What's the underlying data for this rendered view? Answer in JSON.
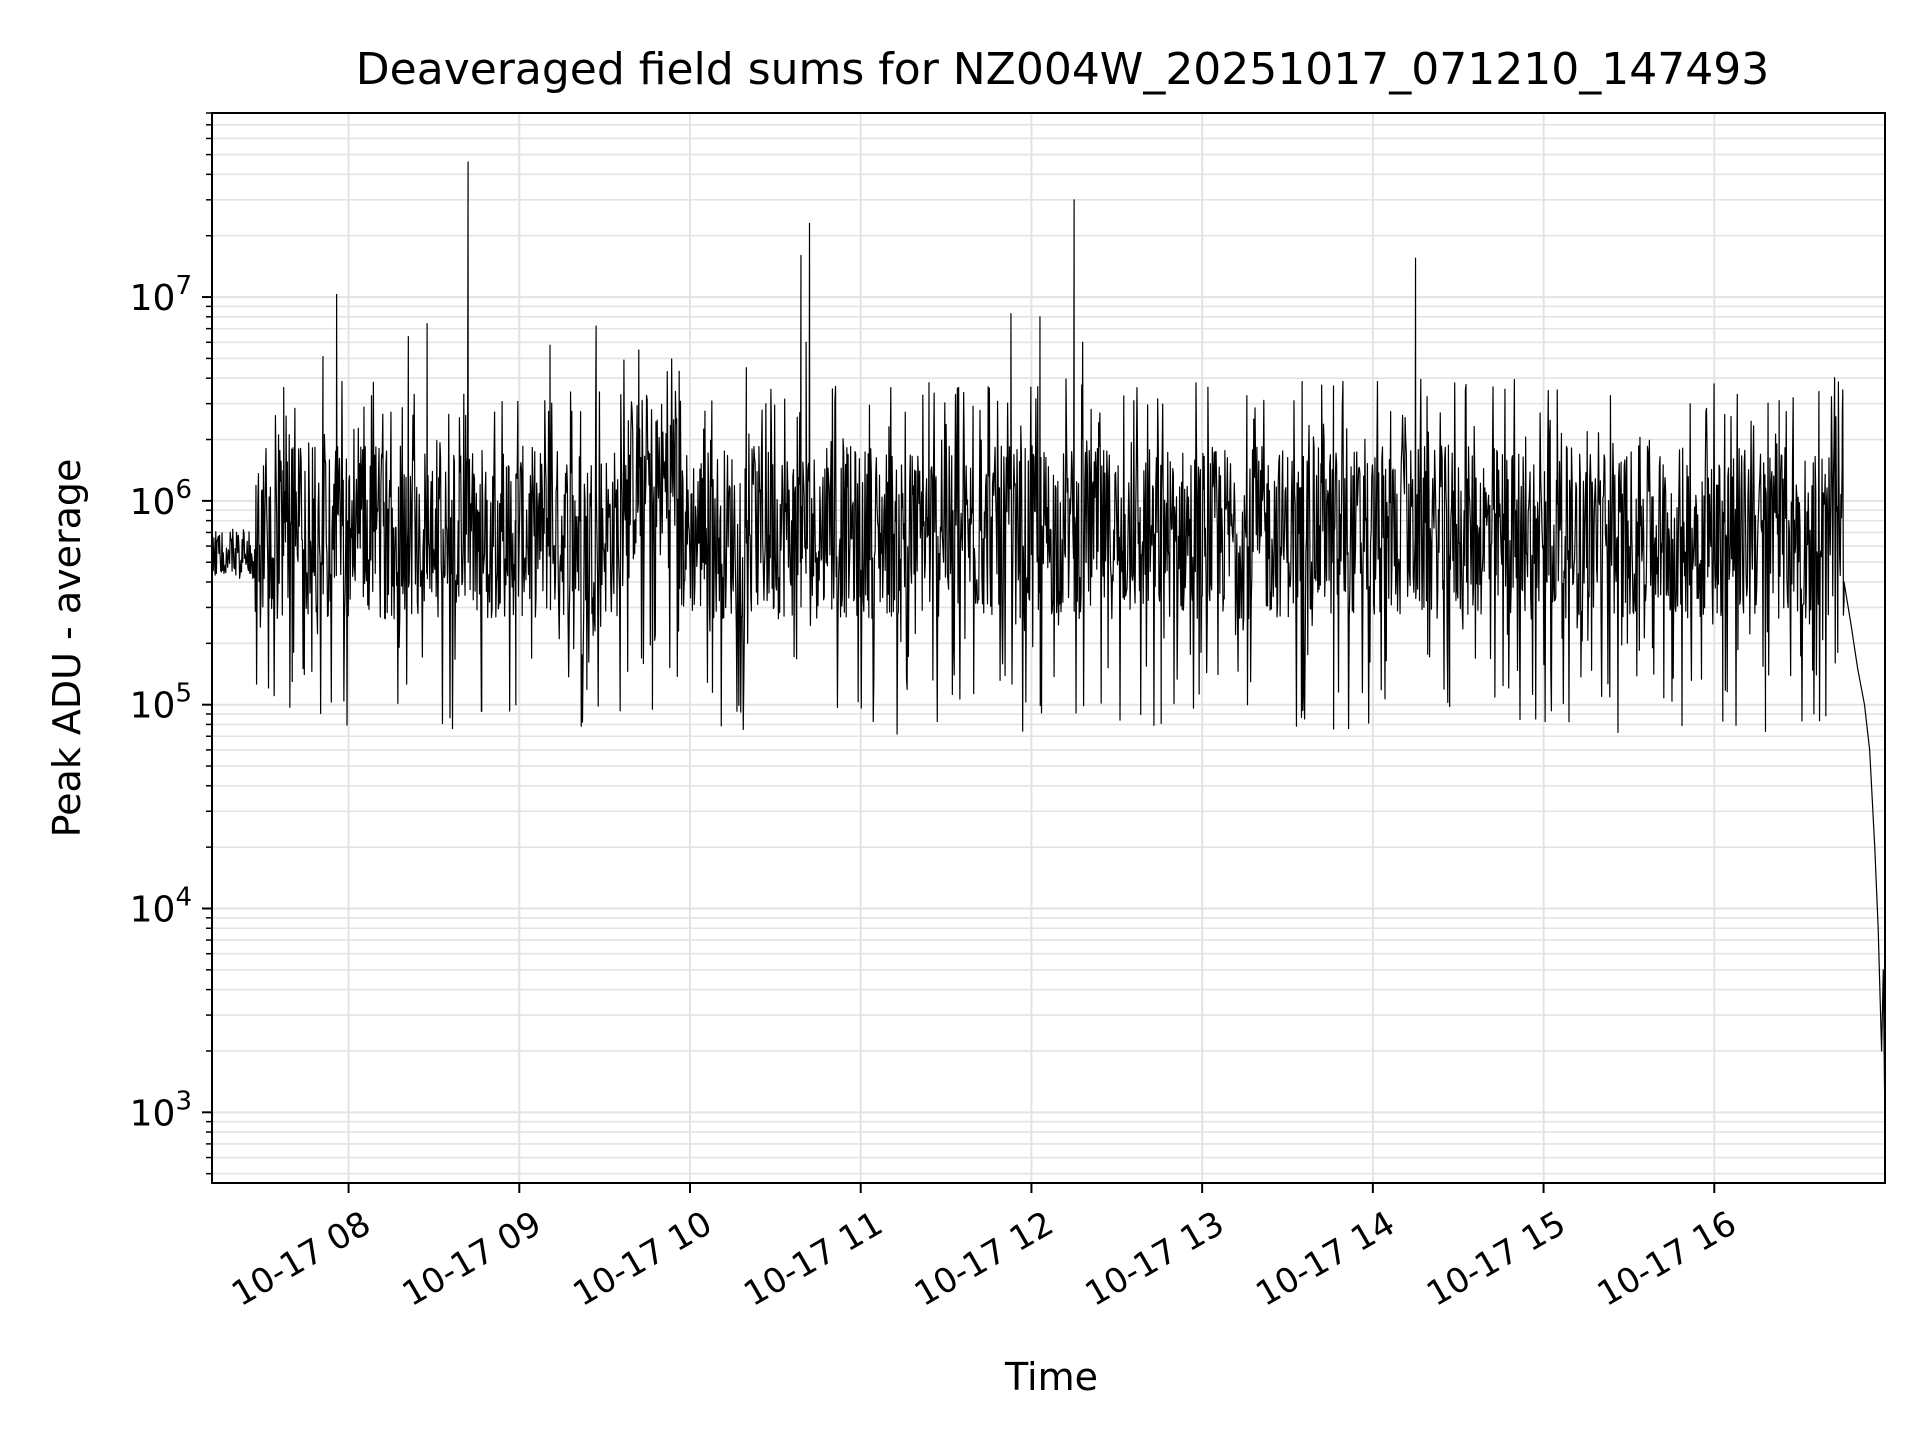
{
  "chart_data": {
    "type": "line",
    "title": "Deaveraged field sums for NZ004W_20251017_071210_147493",
    "xlabel": "Time",
    "ylabel": "Peak ADU - average",
    "yscale": "log",
    "ylim": [
      450,
      80000000
    ],
    "xlim_hours": [
      7.2,
      17.0
    ],
    "grid": true,
    "line_color": "#000000",
    "grid_color": "#e3e3e3",
    "x_ticks": [
      {
        "hour": 8,
        "label": "10-17 08"
      },
      {
        "hour": 9,
        "label": "10-17 09"
      },
      {
        "hour": 10,
        "label": "10-17 10"
      },
      {
        "hour": 11,
        "label": "10-17 11"
      },
      {
        "hour": 12,
        "label": "10-17 12"
      },
      {
        "hour": 13,
        "label": "10-17 13"
      },
      {
        "hour": 14,
        "label": "10-17 14"
      },
      {
        "hour": 15,
        "label": "10-17 15"
      },
      {
        "hour": 16,
        "label": "10-17 16"
      }
    ],
    "y_ticks": [
      {
        "value": 1000,
        "base": "10",
        "exp": "3"
      },
      {
        "value": 10000,
        "base": "10",
        "exp": "4"
      },
      {
        "value": 100000,
        "base": "10",
        "exp": "5"
      },
      {
        "value": 1000000,
        "base": "10",
        "exp": "6"
      },
      {
        "value": 10000000,
        "base": "10",
        "exp": "7"
      }
    ],
    "series": [
      {
        "name": "deaveraged field sum",
        "baseline": {
          "center": 700000,
          "low": 250000,
          "high": 1800000
        },
        "spikes": [
          {
            "hour": 7.62,
            "value": 3600000
          },
          {
            "hour": 7.67,
            "value": 130000
          },
          {
            "hour": 7.93,
            "value": 10300000
          },
          {
            "hour": 7.85,
            "value": 5100000
          },
          {
            "hour": 8.35,
            "value": 6400000
          },
          {
            "hour": 8.46,
            "value": 7400000
          },
          {
            "hour": 8.7,
            "value": 46000000
          },
          {
            "hour": 8.78,
            "value": 93000
          },
          {
            "hour": 8.98,
            "value": 100000
          },
          {
            "hour": 9.18,
            "value": 5800000
          },
          {
            "hour": 9.45,
            "value": 7200000
          },
          {
            "hour": 9.7,
            "value": 5500000
          },
          {
            "hour": 9.78,
            "value": 95000
          },
          {
            "hour": 10.33,
            "value": 4500000
          },
          {
            "hour": 10.65,
            "value": 16000000
          },
          {
            "hour": 10.7,
            "value": 23000000
          },
          {
            "hour": 10.68,
            "value": 6000000
          },
          {
            "hour": 11.4,
            "value": 3800000
          },
          {
            "hour": 11.88,
            "value": 8300000
          },
          {
            "hour": 12.05,
            "value": 8000000
          },
          {
            "hour": 12.25,
            "value": 30000000
          },
          {
            "hour": 12.3,
            "value": 6000000
          },
          {
            "hour": 12.76,
            "value": 81000
          },
          {
            "hour": 13.77,
            "value": 76000
          },
          {
            "hour": 13.7,
            "value": 3700000
          },
          {
            "hour": 14.25,
            "value": 15500000
          },
          {
            "hour": 14.45,
            "value": 98000
          },
          {
            "hour": 15.08,
            "value": 3500000
          },
          {
            "hour": 16.05,
            "value": 83000
          },
          {
            "hour": 16.3,
            "value": 74000
          },
          {
            "hour": 16.38,
            "value": 3100000
          },
          {
            "hour": 16.75,
            "value": 2700000
          }
        ],
        "tail": [
          {
            "hour": 16.76,
            "value": 400000
          },
          {
            "hour": 16.8,
            "value": 250000
          },
          {
            "hour": 16.84,
            "value": 150000
          },
          {
            "hour": 16.88,
            "value": 100000
          },
          {
            "hour": 16.91,
            "value": 60000
          },
          {
            "hour": 16.94,
            "value": 20000
          },
          {
            "hour": 16.96,
            "value": 8000
          },
          {
            "hour": 16.98,
            "value": 2000
          },
          {
            "hour": 16.99,
            "value": 5000
          },
          {
            "hour": 17.0,
            "value": 800
          }
        ]
      }
    ]
  }
}
